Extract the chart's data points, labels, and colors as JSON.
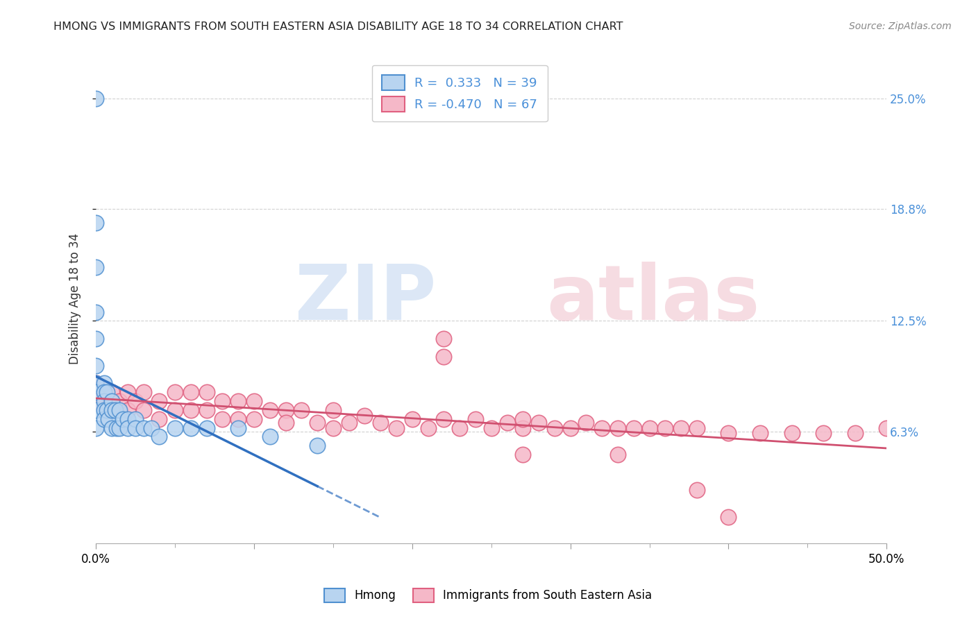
{
  "title": "HMONG VS IMMIGRANTS FROM SOUTH EASTERN ASIA DISABILITY AGE 18 TO 34 CORRELATION CHART",
  "source": "Source: ZipAtlas.com",
  "ylabel": "Disability Age 18 to 34",
  "xlim": [
    0.0,
    0.5
  ],
  "ylim": [
    0.0,
    0.275
  ],
  "x_tick_positions": [
    0.0,
    0.1,
    0.2,
    0.3,
    0.4,
    0.5
  ],
  "x_tick_labels": [
    "0.0%",
    "",
    "",
    "",
    "",
    "50.0%"
  ],
  "y_ticks_right": [
    0.25,
    0.188,
    0.125,
    0.063
  ],
  "y_tick_labels_right": [
    "25.0%",
    "18.8%",
    "12.5%",
    "6.3%"
  ],
  "hmong_color": "#b8d4f0",
  "immigrants_color": "#f5b8c8",
  "hmong_edge_color": "#5090d0",
  "immigrants_edge_color": "#e06080",
  "hmong_line_color": "#3070c0",
  "immigrants_line_color": "#d05070",
  "grid_color": "#cccccc",
  "hmong_R": 0.333,
  "hmong_N": 39,
  "immigrants_R": -0.47,
  "immigrants_N": 67,
  "hmong_points_x": [
    0.0,
    0.0,
    0.0,
    0.0,
    0.0,
    0.0,
    0.0,
    0.0,
    0.0,
    0.0,
    0.005,
    0.005,
    0.005,
    0.005,
    0.005,
    0.007,
    0.007,
    0.008,
    0.01,
    0.01,
    0.01,
    0.012,
    0.013,
    0.015,
    0.015,
    0.017,
    0.02,
    0.02,
    0.025,
    0.025,
    0.03,
    0.035,
    0.04,
    0.05,
    0.06,
    0.07,
    0.09,
    0.11,
    0.14
  ],
  "hmong_points_y": [
    0.25,
    0.18,
    0.155,
    0.13,
    0.115,
    0.1,
    0.09,
    0.085,
    0.075,
    0.065,
    0.09,
    0.085,
    0.08,
    0.075,
    0.07,
    0.085,
    0.075,
    0.07,
    0.08,
    0.075,
    0.065,
    0.075,
    0.065,
    0.075,
    0.065,
    0.07,
    0.07,
    0.065,
    0.07,
    0.065,
    0.065,
    0.065,
    0.06,
    0.065,
    0.065,
    0.065,
    0.065,
    0.06,
    0.055
  ],
  "immigrants_points_x": [
    0.0,
    0.0,
    0.01,
    0.01,
    0.015,
    0.02,
    0.02,
    0.025,
    0.03,
    0.03,
    0.04,
    0.04,
    0.05,
    0.05,
    0.06,
    0.06,
    0.07,
    0.07,
    0.08,
    0.08,
    0.09,
    0.09,
    0.1,
    0.1,
    0.11,
    0.12,
    0.12,
    0.13,
    0.14,
    0.15,
    0.15,
    0.16,
    0.17,
    0.18,
    0.19,
    0.2,
    0.21,
    0.22,
    0.23,
    0.24,
    0.25,
    0.26,
    0.27,
    0.28,
    0.29,
    0.3,
    0.31,
    0.32,
    0.33,
    0.34,
    0.35,
    0.36,
    0.37,
    0.38,
    0.4,
    0.42,
    0.44,
    0.46,
    0.48,
    0.5,
    0.22,
    0.22,
    0.27,
    0.27,
    0.33,
    0.38,
    0.4
  ],
  "immigrants_points_y": [
    0.09,
    0.08,
    0.085,
    0.075,
    0.08,
    0.085,
    0.075,
    0.08,
    0.085,
    0.075,
    0.08,
    0.07,
    0.085,
    0.075,
    0.085,
    0.075,
    0.085,
    0.075,
    0.08,
    0.07,
    0.08,
    0.07,
    0.08,
    0.07,
    0.075,
    0.075,
    0.068,
    0.075,
    0.068,
    0.075,
    0.065,
    0.068,
    0.072,
    0.068,
    0.065,
    0.07,
    0.065,
    0.07,
    0.065,
    0.07,
    0.065,
    0.068,
    0.065,
    0.068,
    0.065,
    0.065,
    0.068,
    0.065,
    0.065,
    0.065,
    0.065,
    0.065,
    0.065,
    0.065,
    0.062,
    0.062,
    0.062,
    0.062,
    0.062,
    0.065,
    0.105,
    0.115,
    0.07,
    0.05,
    0.05,
    0.03,
    0.015
  ]
}
